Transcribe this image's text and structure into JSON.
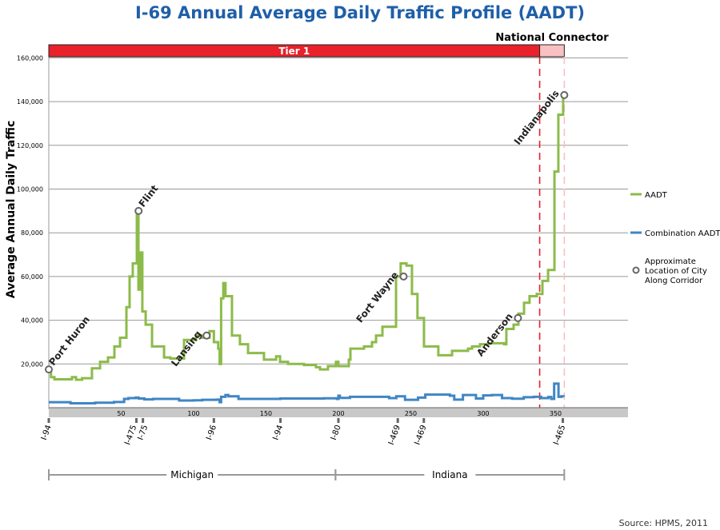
{
  "chart_data": {
    "type": "line",
    "title": "I-69 Annual Average Daily Traffic Profile (AADT)",
    "ylabel": "Average Annual Daily Traffic",
    "xlabel": "",
    "xlim": [
      0,
      400
    ],
    "ylim": [
      0,
      160000
    ],
    "x_ticks": [
      50,
      100,
      150,
      200,
      250,
      300,
      350
    ],
    "y_ticks": [
      20000,
      40000,
      60000,
      80000,
      100000,
      120000,
      140000,
      160000
    ],
    "y_tick_labels": [
      "20,000",
      "40,000",
      "60,000",
      "80,000",
      "100,000",
      "120,000",
      "140,000",
      "160,000"
    ],
    "grid": true,
    "legend_placement": "right",
    "colors": {
      "aadt": "#8cbb4a",
      "combination": "#3f86c4",
      "tier1": "#e8212b",
      "national": "#f9c0c3",
      "title": "#1f5fa8"
    },
    "tiers": [
      {
        "label": "Tier 1",
        "start": 0,
        "end": 339
      },
      {
        "label": "National Connector",
        "start": 339,
        "end": 356
      }
    ],
    "series": [
      {
        "name": "AADT",
        "step": true,
        "points": [
          [
            0,
            17500
          ],
          [
            1.5,
            14000
          ],
          [
            3.9,
            13000
          ],
          [
            16,
            14000
          ],
          [
            18.8,
            12800
          ],
          [
            23,
            13500
          ],
          [
            29.8,
            18000
          ],
          [
            35.4,
            21000
          ],
          [
            40.9,
            23000
          ],
          [
            45.3,
            28000
          ],
          [
            49.2,
            32000
          ],
          [
            53.6,
            46000
          ],
          [
            55.8,
            60000
          ],
          [
            58,
            66000
          ],
          [
            60.8,
            90000
          ],
          [
            61.9,
            54000
          ],
          [
            63,
            71000
          ],
          [
            64.6,
            44000
          ],
          [
            66.9,
            38000
          ],
          [
            71.3,
            28000
          ],
          [
            79.6,
            23000
          ],
          [
            84,
            22500
          ],
          [
            93.4,
            31000
          ],
          [
            101.7,
            33000
          ],
          [
            106,
            32000
          ],
          [
            111,
            35000
          ],
          [
            114,
            30000
          ],
          [
            117,
            27000
          ],
          [
            118,
            20000
          ],
          [
            119,
            50000
          ],
          [
            120.5,
            57000
          ],
          [
            122,
            51000
          ],
          [
            126.5,
            33000
          ],
          [
            132,
            29000
          ],
          [
            137.6,
            25000
          ],
          [
            148.6,
            22000
          ],
          [
            157,
            23500
          ],
          [
            159.7,
            21000
          ],
          [
            165.2,
            20000
          ],
          [
            176.2,
            19500
          ],
          [
            184.5,
            18500
          ],
          [
            187.3,
            17500
          ],
          [
            192.8,
            19000
          ],
          [
            198.3,
            21000
          ],
          [
            200,
            19000
          ],
          [
            207.2,
            22000
          ],
          [
            208.3,
            27000
          ],
          [
            217.7,
            28000
          ],
          [
            223.2,
            30000
          ],
          [
            226,
            33000
          ],
          [
            230.4,
            37000
          ],
          [
            239.8,
            60000
          ],
          [
            243,
            66000
          ],
          [
            247,
            65000
          ],
          [
            250.8,
            52000
          ],
          [
            254.6,
            41000
          ],
          [
            259.1,
            28000
          ],
          [
            269,
            24000
          ],
          [
            278.5,
            26000
          ],
          [
            289.5,
            27000
          ],
          [
            292.3,
            28000
          ],
          [
            297.8,
            29000
          ],
          [
            303.3,
            29500
          ],
          [
            314.4,
            29000
          ],
          [
            316,
            36000
          ],
          [
            321,
            38000
          ],
          [
            324.3,
            43000
          ],
          [
            328.2,
            48000
          ],
          [
            332,
            51000
          ],
          [
            337,
            52000
          ],
          [
            340.9,
            58000
          ],
          [
            344.8,
            63000
          ],
          [
            349.2,
            108000
          ],
          [
            351.9,
            134000
          ],
          [
            355.2,
            143000
          ]
        ]
      },
      {
        "name": "Combination AADT",
        "step": true,
        "points": [
          [
            0,
            2500
          ],
          [
            15,
            2000
          ],
          [
            32,
            2300
          ],
          [
            45,
            2600
          ],
          [
            52,
            4000
          ],
          [
            55,
            4400
          ],
          [
            60,
            4600
          ],
          [
            62,
            4200
          ],
          [
            66,
            3800
          ],
          [
            72,
            4000
          ],
          [
            90,
            3300
          ],
          [
            100,
            3400
          ],
          [
            106,
            3600
          ],
          [
            116,
            3700
          ],
          [
            118,
            2500
          ],
          [
            119,
            5000
          ],
          [
            122,
            5800
          ],
          [
            124,
            5200
          ],
          [
            131,
            4000
          ],
          [
            160,
            4200
          ],
          [
            190,
            4300
          ],
          [
            199,
            4000
          ],
          [
            200,
            5500
          ],
          [
            201,
            4500
          ],
          [
            208,
            5000
          ],
          [
            235,
            4400
          ],
          [
            240,
            5200
          ],
          [
            246,
            3600
          ],
          [
            255,
            4600
          ],
          [
            260,
            6000
          ],
          [
            277,
            5500
          ],
          [
            280,
            3700
          ],
          [
            286,
            5800
          ],
          [
            295,
            4200
          ],
          [
            300,
            5600
          ],
          [
            306,
            5800
          ],
          [
            313,
            4400
          ],
          [
            320,
            4100
          ],
          [
            328,
            4800
          ],
          [
            335,
            5000
          ],
          [
            340,
            4400
          ],
          [
            345,
            4900
          ],
          [
            347,
            4000
          ],
          [
            349,
            11000
          ],
          [
            352,
            5000
          ],
          [
            354,
            5200
          ],
          [
            355.5,
            5000
          ]
        ]
      }
    ],
    "cities": [
      {
        "name": "Port Huron",
        "x": 0,
        "y": 17500
      },
      {
        "name": "Flint",
        "x": 62,
        "y": 90000
      },
      {
        "name": "Lansing",
        "x": 109,
        "y": 33000
      },
      {
        "name": "Fort Wayne",
        "x": 245,
        "y": 60000
      },
      {
        "name": "Anderson",
        "x": 324,
        "y": 41000
      },
      {
        "name": "Indianapolis",
        "x": 356,
        "y": 143000
      }
    ],
    "interchanges": [
      {
        "label": "I-94",
        "x": 0
      },
      {
        "label": "I-475",
        "x": 60.5
      },
      {
        "label": "I-75",
        "x": 65
      },
      {
        "label": "I-96",
        "x": 114
      },
      {
        "label": "I-94",
        "x": 160
      },
      {
        "label": "I-80",
        "x": 200
      },
      {
        "label": "I-469",
        "x": 241
      },
      {
        "label": "I-469",
        "x": 259
      },
      {
        "label": "I-465",
        "x": 355
      }
    ],
    "states": [
      {
        "label": "Michigan",
        "start": 0,
        "end": 198
      },
      {
        "label": "Indiana",
        "start": 198,
        "end": 356
      }
    ],
    "legend": [
      "AADT",
      "Combination AADT",
      "Approximate Location of City Along Corridor"
    ],
    "source": "Source: HPMS, 2011"
  }
}
